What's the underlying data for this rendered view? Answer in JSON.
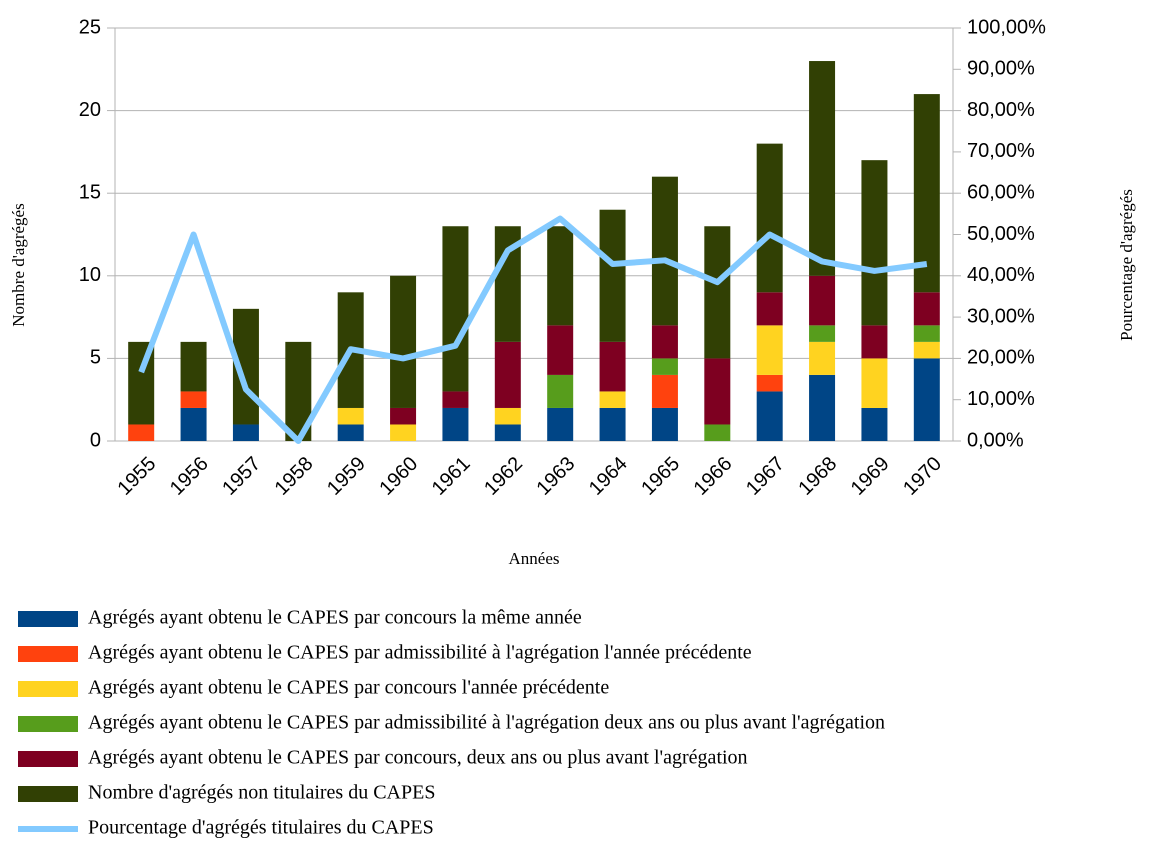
{
  "chart_data": {
    "type": "bar",
    "stacked": true,
    "grid": true,
    "ylabel": "Nombre d'agrégés",
    "xlabel": "Années",
    "y2label": "Pourcentage d'agrégés",
    "categories": [
      "1955",
      "1956",
      "1957",
      "1958",
      "1959",
      "1960",
      "1961",
      "1962",
      "1963",
      "1964",
      "1965",
      "1966",
      "1967",
      "1968",
      "1969",
      "1970"
    ],
    "series": [
      {
        "name": "Agrégés ayant obtenu le CAPES par concours la même année",
        "color": "#004586",
        "values": [
          0,
          2,
          1,
          0,
          1,
          0,
          2,
          1,
          2,
          2,
          2,
          0,
          3,
          4,
          2,
          5
        ]
      },
      {
        "name": "Agrégés ayant obtenu le CAPES par admissibilité à l'agrégation l'année précédente",
        "color": "#ff420e",
        "values": [
          1,
          1,
          0,
          0,
          0,
          0,
          0,
          0,
          0,
          0,
          2,
          0,
          1,
          0,
          0,
          0
        ]
      },
      {
        "name": "Agrégés ayant obtenu le CAPES par concours l'année précédente",
        "color": "#ffd320",
        "values": [
          0,
          0,
          0,
          0,
          1,
          1,
          0,
          1,
          0,
          1,
          0,
          0,
          3,
          2,
          3,
          1
        ]
      },
      {
        "name": "Agrégés ayant obtenu le CAPES par admissibilité à l'agrégation deux ans ou plus avant l'agrégation",
        "color": "#579d1c",
        "values": [
          0,
          0,
          0,
          0,
          0,
          0,
          0,
          0,
          2,
          0,
          1,
          1,
          0,
          1,
          0,
          1
        ]
      },
      {
        "name": "Agrégés ayant obtenu le CAPES par concours, deux ans ou plus avant l'agrégation",
        "color": "#7e0021",
        "values": [
          0,
          0,
          0,
          0,
          0,
          1,
          1,
          4,
          3,
          3,
          2,
          4,
          2,
          3,
          2,
          2
        ]
      },
      {
        "name": "Nombre d'agrégés non titulaires du CAPES",
        "color": "#314004",
        "values": [
          5,
          3,
          7,
          6,
          7,
          8,
          10,
          7,
          6,
          8,
          9,
          8,
          9,
          13,
          10,
          12
        ]
      },
      {
        "name": "Pourcentage d'agrégés titulaires du CAPES",
        "color": "#83caff",
        "type": "line",
        "axis": "y2",
        "values": [
          16.67,
          50,
          12.5,
          0,
          22.22,
          20,
          23.08,
          46.15,
          53.85,
          42.86,
          43.75,
          38.46,
          50,
          43.48,
          41.18,
          42.86
        ]
      }
    ],
    "ylim": [
      0,
      25
    ],
    "yticks": [
      0,
      5,
      10,
      15,
      20,
      25
    ],
    "y2lim": [
      0,
      100
    ],
    "y2ticks": [
      {
        "value": 0,
        "label": "0,00%"
      },
      {
        "value": 10,
        "label": "10,00%"
      },
      {
        "value": 20,
        "label": "20,00%"
      },
      {
        "value": 30,
        "label": "30,00%"
      },
      {
        "value": 40,
        "label": "40,00%"
      },
      {
        "value": 50,
        "label": "50,00%"
      },
      {
        "value": 60,
        "label": "60,00%"
      },
      {
        "value": 70,
        "label": "70,00%"
      },
      {
        "value": 80,
        "label": "80,00%"
      },
      {
        "value": 90,
        "label": "90,00%"
      },
      {
        "value": 100,
        "label": "100,00%"
      }
    ]
  }
}
